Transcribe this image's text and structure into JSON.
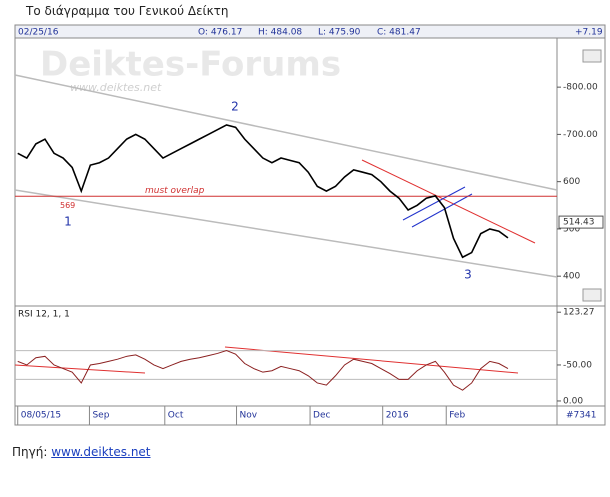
{
  "caption": "Το διάγραμμα του Γενικού Δείκτη",
  "source": {
    "label": "Πηγή:",
    "link": "www.deiktes.net"
  },
  "chart_data": [
    {
      "type": "line",
      "date": "02/25/16",
      "header": [
        "O: 476.17",
        "H: 484.08",
        "L: 475.90",
        "C: 481.47"
      ],
      "change": "+7.19",
      "watermark": "Deiktes-Forums",
      "watermark_url": "www.deiktes.net",
      "color": "#000000",
      "values": [
        660,
        650,
        680,
        690,
        660,
        650,
        630,
        580,
        635,
        640,
        650,
        670,
        690,
        700,
        690,
        670,
        650,
        660,
        670,
        680,
        690,
        700,
        710,
        720,
        715,
        690,
        670,
        650,
        640,
        650,
        645,
        640,
        620,
        590,
        580,
        590,
        610,
        625,
        620,
        615,
        600,
        580,
        565,
        540,
        550,
        565,
        570,
        545,
        480,
        440,
        450,
        490,
        500,
        495,
        481
      ],
      "xlim": [
        -0.3,
        59.4
      ],
      "ylim": [
        339,
        904
      ],
      "yticks": [
        {
          "value": 400,
          "label": "400"
        },
        {
          "value": 500,
          "label": "500"
        },
        {
          "value": 600,
          "label": "600"
        },
        {
          "value": 700,
          "label": "-700.00"
        },
        {
          "value": 800,
          "label": "-800.00"
        }
      ],
      "price_marker": 514.43,
      "overlap": {
        "value": 569,
        "label": "must overlap"
      },
      "waves": [
        "1",
        "2",
        "3"
      ]
    },
    {
      "type": "line",
      "title": "RSI 12, 1, 1",
      "color": "#8b2020",
      "values": [
        55,
        50,
        60,
        62,
        50,
        45,
        40,
        25,
        50,
        52,
        55,
        58,
        62,
        64,
        58,
        50,
        45,
        50,
        55,
        58,
        60,
        63,
        66,
        70,
        65,
        52,
        45,
        40,
        42,
        48,
        45,
        42,
        35,
        25,
        22,
        35,
        50,
        58,
        55,
        52,
        45,
        38,
        30,
        30,
        42,
        50,
        55,
        40,
        22,
        15,
        25,
        45,
        55,
        52,
        45
      ],
      "xlim": [
        -0.3,
        59.4
      ],
      "ylim": [
        -5.6,
        130.5
      ],
      "yticks": [
        {
          "value": 0,
          "label": "0.00"
        },
        {
          "value": 50,
          "label": "-50.00"
        },
        123.27
      ],
      "levels": [
        70,
        30
      ],
      "xticks": [
        {
          "value": 0,
          "label": "08/05/15"
        },
        {
          "value": 7.9,
          "label": "Sep"
        },
        {
          "value": 16.2,
          "label": "Oct"
        },
        {
          "value": 24.1,
          "label": "Nov"
        },
        {
          "value": 32.2,
          "label": "Dec"
        },
        {
          "value": 40.2,
          "label": "2016"
        },
        {
          "value": 47.2,
          "label": "Feb"
        }
      ],
      "record_count": "#7341"
    }
  ]
}
